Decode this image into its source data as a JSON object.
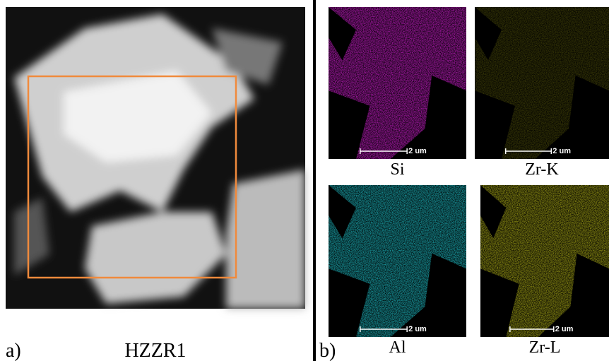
{
  "panel_a": {
    "label": "a)",
    "title": "HZZR1"
  },
  "panel_b": {
    "label": "b)",
    "maps": [
      {
        "element": "Si",
        "scale": "2 um"
      },
      {
        "element": "Zr-K",
        "scale": "2 um"
      },
      {
        "element": "Al",
        "scale": "2 um"
      },
      {
        "element": "Zr-L",
        "scale": "2 um"
      }
    ]
  }
}
